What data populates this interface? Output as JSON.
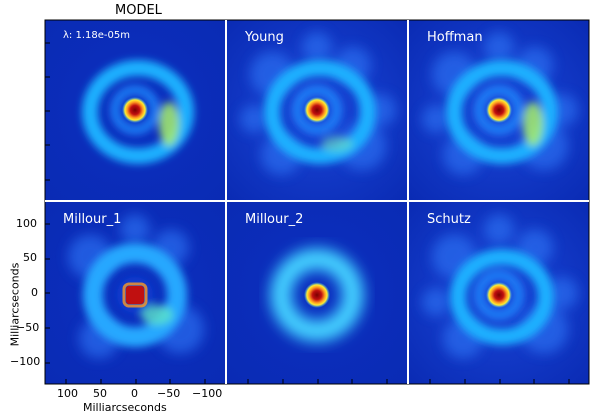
{
  "figure": {
    "title": "MODEL",
    "wavelength": "λ: 1.18e-05m",
    "panels": [
      {
        "title": "",
        "style": "model"
      },
      {
        "title": "Young",
        "style": "young"
      },
      {
        "title": "Hoffman",
        "style": "hoffman"
      },
      {
        "title": "Millour_1",
        "style": "millour1"
      },
      {
        "title": "Millour_2",
        "style": "millour2"
      },
      {
        "title": "Schutz",
        "style": "schutz"
      }
    ],
    "axes": {
      "ylabel": "Milliarcseconds",
      "xlabel": "Milliarcseconds",
      "yticks": [
        "100",
        "50",
        "0",
        "−50",
        "−100"
      ],
      "xticks": [
        "100",
        "50",
        "0",
        "−50",
        "−100"
      ]
    }
  },
  "colors": {
    "background": "#0a2bb4",
    "ring": "#1fb0ff",
    "core": "#c01010",
    "bright": "#ffee30"
  }
}
